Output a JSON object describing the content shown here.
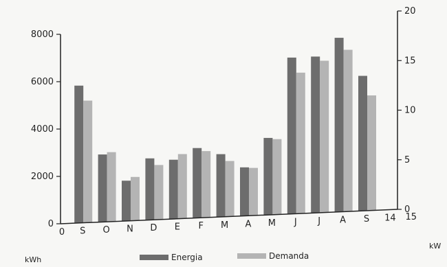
{
  "chart_data": {
    "type": "bar",
    "categories": [
      "S",
      "O",
      "N",
      "D",
      "E",
      "F",
      "M",
      "A",
      "M",
      "J",
      "J",
      "A",
      "S"
    ],
    "x_extra_ticks": [
      "0",
      "14",
      "15"
    ],
    "series": [
      {
        "name": "Energia",
        "axis": "left",
        "values": [
          5800,
          2850,
          1700,
          2600,
          2500,
          2950,
          2650,
          2050,
          3250,
          6600,
          6600,
          7350,
          5700
        ],
        "color": "#6d6d6d"
      },
      {
        "name": "Demanda",
        "axis": "right",
        "values": [
          12.3,
          7.0,
          4.4,
          5.5,
          6.5,
          6.7,
          5.6,
          4.8,
          7.6,
          14.2,
          15.3,
          16.3,
          11.6
        ],
        "color": "#b4b4b4"
      }
    ],
    "y_left": {
      "label": "kWh",
      "ylim": [
        0,
        8000
      ],
      "ticks": [
        "0",
        "2000",
        "4000",
        "6000",
        "8000"
      ]
    },
    "y_right": {
      "label": "kW",
      "ylim": [
        0,
        20
      ],
      "ticks": [
        "0",
        "5",
        "10",
        "15",
        "20"
      ]
    },
    "legend_position": "bottom",
    "grid": false
  }
}
